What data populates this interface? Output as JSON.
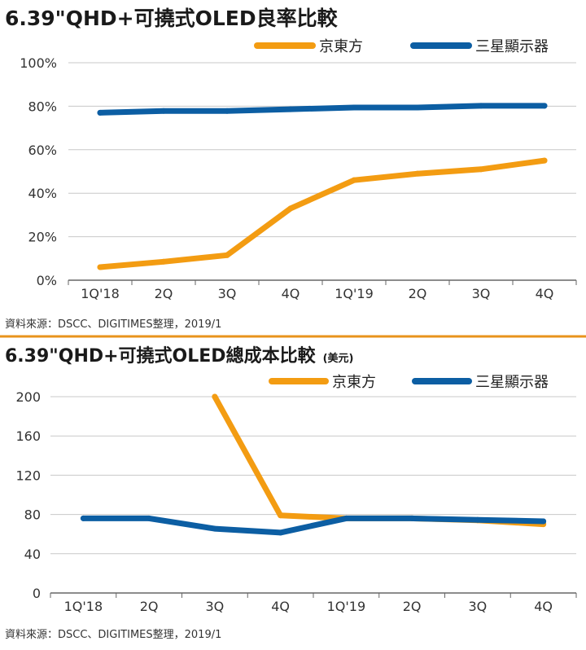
{
  "colors": {
    "accent_line": "#e8931c",
    "boe": "#f39c12",
    "samsung": "#0c5ea3",
    "grid": "#c8c8c8",
    "axis": "#666666"
  },
  "chart_data": [
    {
      "type": "line",
      "title": "6.39\"QHD+可撓式OLED良率比較",
      "categories": [
        "1Q'18",
        "2Q",
        "3Q",
        "4Q",
        "1Q'19",
        "2Q",
        "3Q",
        "4Q"
      ],
      "series": [
        {
          "name": "京東方",
          "color": "#f39c12",
          "values": [
            6,
            8.5,
            11.5,
            33,
            46,
            49,
            51,
            55
          ]
        },
        {
          "name": "三星顯示器",
          "color": "#0c5ea3",
          "values": [
            77,
            77.8,
            77.8,
            78.6,
            79.4,
            79.4,
            80.2,
            80.2
          ]
        }
      ],
      "y_ticks": [
        "0%",
        "20%",
        "40%",
        "60%",
        "80%",
        "100%"
      ],
      "ylim": [
        0,
        100
      ],
      "grid": true,
      "legend": "top-right",
      "source": "資料來源：DSCC、DIGITIMES整理，2019/1"
    },
    {
      "type": "line",
      "title": "6.39\"QHD+可撓式OLED總成本比較",
      "title_unit": "(美元)",
      "categories": [
        "1Q'18",
        "2Q",
        "3Q",
        "4Q",
        "1Q'19",
        "2Q",
        "3Q",
        "4Q"
      ],
      "series": [
        {
          "name": "京東方",
          "color": "#f39c12",
          "values": [
            null,
            null,
            200,
            79,
            76,
            76,
            74,
            70
          ]
        },
        {
          "name": "三星顯示器",
          "color": "#0c5ea3",
          "values": [
            76,
            76,
            65.5,
            61.5,
            76,
            76,
            74.5,
            73
          ]
        }
      ],
      "y_ticks": [
        "0",
        "40",
        "80",
        "120",
        "160",
        "200"
      ],
      "ylim": [
        0,
        200
      ],
      "grid": true,
      "legend": "top-right",
      "source": "資料來源：DSCC、DIGITIMES整理，2019/1"
    }
  ]
}
